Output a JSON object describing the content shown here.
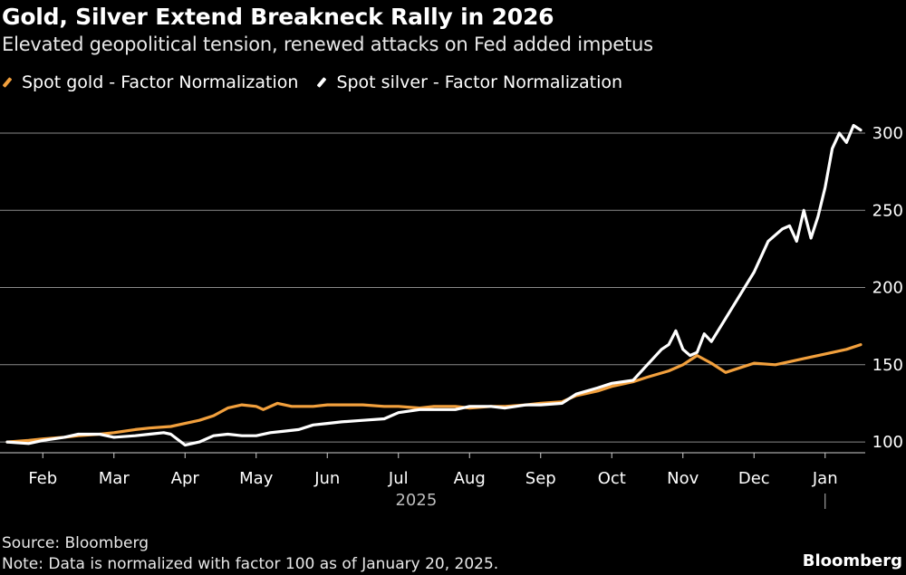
{
  "header": {
    "title": "Gold, Silver Extend Breakneck Rally in 2026",
    "subtitle": "Elevated geopolitical tension, renewed attacks on Fed added impetus"
  },
  "colors": {
    "gold": "#f2a03d",
    "silver": "#ffffff",
    "grid": "#8a8a8a",
    "background": "#000000"
  },
  "chart_data": {
    "type": "line",
    "title": "Gold, Silver Extend Breakneck Rally in 2026",
    "subtitle": "Elevated geopolitical tension, renewed attacks on Fed added impetus",
    "xlabel": "",
    "ylabel": "",
    "x_tick_labels": [
      "Feb",
      "Mar",
      "Apr",
      "May",
      "Jun",
      "Jul",
      "Aug",
      "Sep",
      "Oct",
      "Nov",
      "Dec",
      "Jan"
    ],
    "x_year_label": "2025",
    "y_ticks": [
      100,
      150,
      200,
      250,
      300
    ],
    "ylim": [
      93,
      310
    ],
    "xlim": [
      0,
      12.0
    ],
    "grid": true,
    "legend": "top-left",
    "series": [
      {
        "name": "Spot gold - Factor Normalization",
        "color": "#f2a03d",
        "x": [
          0,
          0.3,
          0.5,
          0.8,
          1.0,
          1.3,
          1.5,
          1.8,
          2.0,
          2.3,
          2.5,
          2.7,
          2.9,
          3.1,
          3.3,
          3.5,
          3.6,
          3.8,
          4.0,
          4.3,
          4.5,
          4.8,
          5.0,
          5.3,
          5.5,
          5.8,
          6.0,
          6.3,
          6.5,
          6.8,
          7.0,
          7.3,
          7.5,
          7.8,
          8.0,
          8.3,
          8.5,
          8.8,
          9.0,
          9.3,
          9.5,
          9.7,
          9.9,
          10.1,
          10.3,
          10.5,
          10.8,
          11.0,
          11.3,
          11.5,
          11.8,
          12.0
        ],
        "values": [
          100,
          101,
          102,
          103,
          104,
          105,
          106,
          108,
          109,
          110,
          112,
          114,
          117,
          122,
          124,
          123,
          121,
          125,
          123,
          123,
          124,
          124,
          124,
          123,
          123,
          122,
          123,
          123,
          122,
          123,
          123,
          124,
          125,
          126,
          130,
          133,
          136,
          139,
          142,
          146,
          150,
          156,
          151,
          145,
          148,
          151,
          150,
          152,
          155,
          157,
          160,
          163
        ]
      },
      {
        "name": "Spot silver - Factor Normalization",
        "color": "#ffffff",
        "x": [
          0,
          0.3,
          0.5,
          0.8,
          1.0,
          1.3,
          1.5,
          1.8,
          2.0,
          2.2,
          2.3,
          2.5,
          2.7,
          2.9,
          3.1,
          3.3,
          3.5,
          3.7,
          3.9,
          4.1,
          4.3,
          4.5,
          4.7,
          5.0,
          5.3,
          5.5,
          5.8,
          6.0,
          6.3,
          6.5,
          6.8,
          7.0,
          7.3,
          7.5,
          7.8,
          8.0,
          8.3,
          8.5,
          8.8,
          9.0,
          9.2,
          9.3,
          9.4,
          9.5,
          9.6,
          9.7,
          9.8,
          9.9,
          10.1,
          10.3,
          10.5,
          10.7,
          10.9,
          11.0,
          11.1,
          11.2,
          11.3,
          11.4,
          11.5,
          11.6,
          11.7,
          11.8,
          11.9,
          12.0
        ],
        "values": [
          100,
          99,
          101,
          103,
          105,
          105,
          103,
          104,
          105,
          106,
          105,
          98,
          100,
          104,
          105,
          104,
          104,
          106,
          107,
          108,
          111,
          112,
          113,
          114,
          115,
          119,
          121,
          121,
          121,
          123,
          123,
          122,
          124,
          124,
          125,
          131,
          135,
          138,
          140,
          150,
          160,
          163,
          172,
          160,
          156,
          158,
          170,
          165,
          180,
          195,
          210,
          230,
          238,
          240,
          230,
          250,
          232,
          246,
          265,
          290,
          300,
          294,
          305,
          302
        ]
      }
    ]
  },
  "legend": {
    "gold_label": "Spot gold - Factor Normalization",
    "silver_label": "Spot silver - Factor Normalization"
  },
  "footer": {
    "source": "Source: Bloomberg",
    "note": "Note: Data is normalized with factor 100 as of January 20, 2025.",
    "brand": "Bloomberg"
  }
}
